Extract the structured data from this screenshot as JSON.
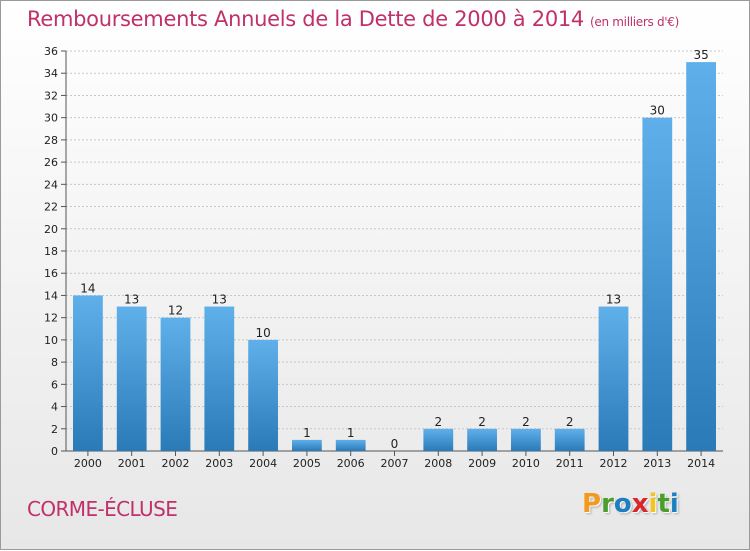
{
  "header": {
    "title": "Remboursements Annuels de la Dette de 2000 à 2014",
    "unit": "(en milliers d'€)"
  },
  "footer": {
    "commune": "CORME-ÉCLUSE",
    "logo_letters": [
      "P",
      "r",
      "o",
      "x",
      "i",
      "t",
      "i"
    ],
    "logo_colors": [
      "#f39a1e",
      "#4a9e2e",
      "#1d7fc1",
      "#d8262f",
      "#f3c31e",
      "#4a9e2e",
      "#1d7fc1"
    ]
  },
  "colors": {
    "bar_light": "#5fb0ea",
    "bar_dark": "#2a7ab8",
    "title": "#c0306a"
  },
  "chart_data": {
    "type": "bar",
    "title": "Remboursements Annuels de la Dette de 2000 à 2014",
    "subtitle": "(en milliers d'€)",
    "categories": [
      "2000",
      "2001",
      "2002",
      "2003",
      "2004",
      "2005",
      "2006",
      "2007",
      "2008",
      "2009",
      "2010",
      "2011",
      "2012",
      "2013",
      "2014"
    ],
    "values": [
      14,
      13,
      12,
      13,
      10,
      1,
      1,
      0,
      2,
      2,
      2,
      2,
      13,
      30,
      35
    ],
    "ylim": [
      0,
      36
    ],
    "yticks": [
      0,
      2,
      4,
      6,
      8,
      10,
      12,
      14,
      16,
      18,
      20,
      22,
      24,
      26,
      28,
      30,
      32,
      34,
      36
    ],
    "grid": true,
    "legend": "none"
  }
}
